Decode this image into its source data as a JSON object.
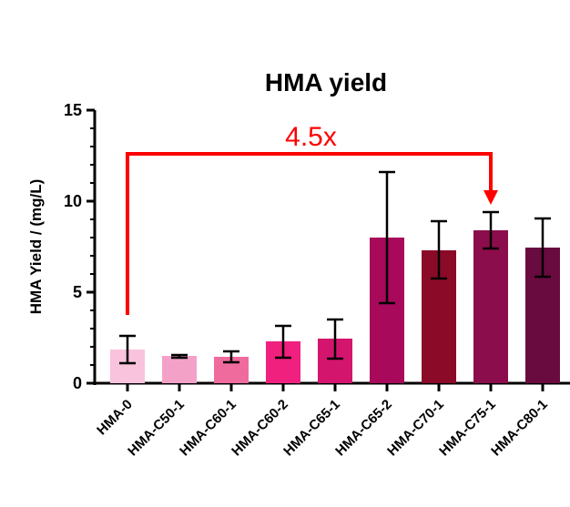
{
  "chart_data": {
    "type": "bar",
    "title": "HMA yield",
    "xlabel": "",
    "ylabel": "HMA Yield / (mg/L)",
    "ylim": [
      0,
      15
    ],
    "yticks": [
      "0",
      "5",
      "10",
      "15"
    ],
    "grid": false,
    "categories": [
      "HMA-0",
      "HMA-C50-1",
      "HMA-C60-1",
      "HMA-C60-2",
      "HMA-C65-1",
      "HMA-C65-2",
      "HMA-C70-1",
      "HMA-C75-1",
      "HMA-C80-1"
    ],
    "values": [
      1.85,
      1.5,
      1.45,
      2.3,
      2.45,
      8.0,
      7.3,
      8.4,
      7.45
    ],
    "error_low": [
      1.1,
      1.4,
      1.15,
      1.4,
      1.35,
      4.4,
      5.75,
      7.4,
      5.85
    ],
    "error_high": [
      2.6,
      1.55,
      1.75,
      3.15,
      3.5,
      11.6,
      8.9,
      9.4,
      9.05
    ],
    "colors": [
      "#f9c3dd",
      "#f4a1c8",
      "#ef6b9e",
      "#f0207f",
      "#d4156e",
      "#a8095a",
      "#8b0a28",
      "#8c0d4b",
      "#6a0b3f"
    ],
    "annotation": {
      "text": "4.5x",
      "color": "#ff0000",
      "from_category": "HMA-0",
      "to_category": "HMA-C75-1",
      "bracket_y": 12.6,
      "from_y": 3.75,
      "to_y": 9.8
    }
  }
}
